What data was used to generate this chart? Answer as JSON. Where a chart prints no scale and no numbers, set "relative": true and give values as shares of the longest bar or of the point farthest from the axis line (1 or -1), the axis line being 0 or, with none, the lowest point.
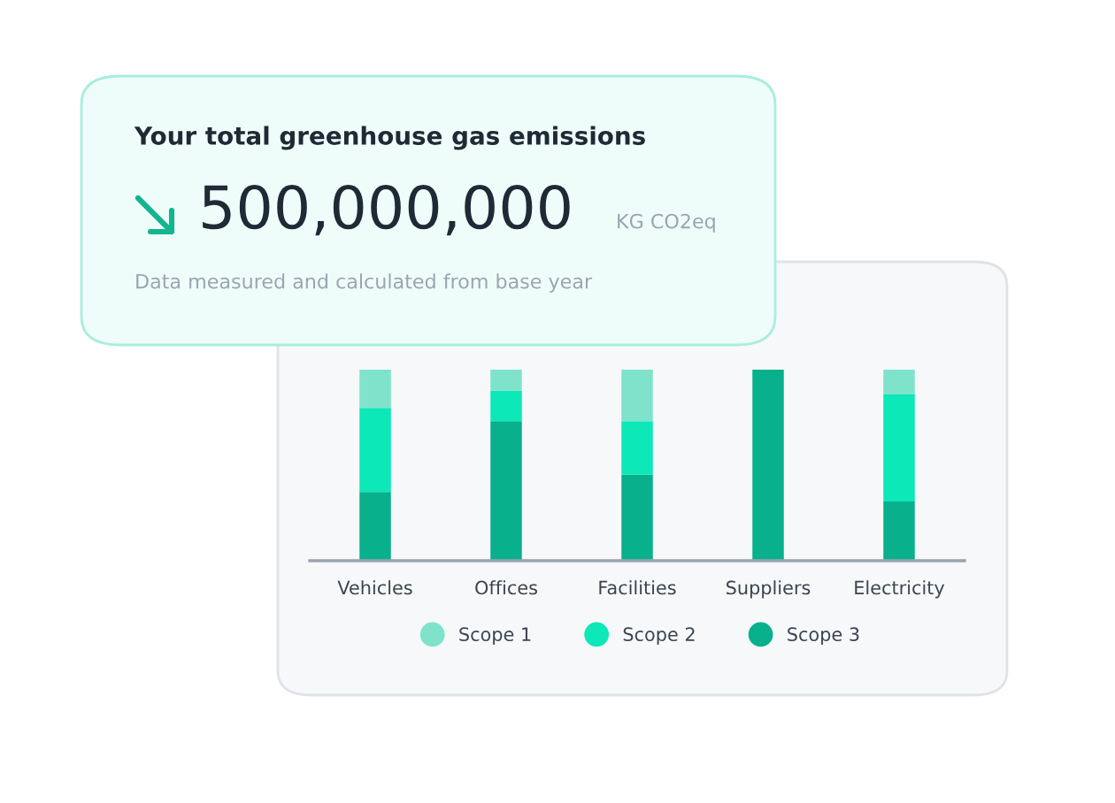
{
  "chart_data": [
    {
      "type": "other",
      "title": "Your total greenhouse gas emissions",
      "annotations": [
        "500,000,000",
        "KG CO2eq",
        "Data measured and calculated from base year"
      ]
    },
    {
      "type": "bar",
      "stacked": true,
      "relative": true,
      "categories": [
        "Vehicles",
        "Offices",
        "Facilities",
        "Suppliers",
        "Electricity"
      ],
      "legend": "bottom",
      "grid": false,
      "series": [
        {
          "name": "Scope 3",
          "color": "#08b08c",
          "values": [
            0.36,
            0.73,
            0.45,
            1.0,
            0.31
          ]
        },
        {
          "name": "Scope 2",
          "color": "#0de8b8",
          "values": [
            0.44,
            0.16,
            0.28,
            0,
            0.56
          ]
        },
        {
          "name": "Scope 1",
          "color": "#7fe3cc",
          "values": [
            0.2,
            0.11,
            0.27,
            0,
            0.13
          ]
        }
      ]
    }
  ]
}
